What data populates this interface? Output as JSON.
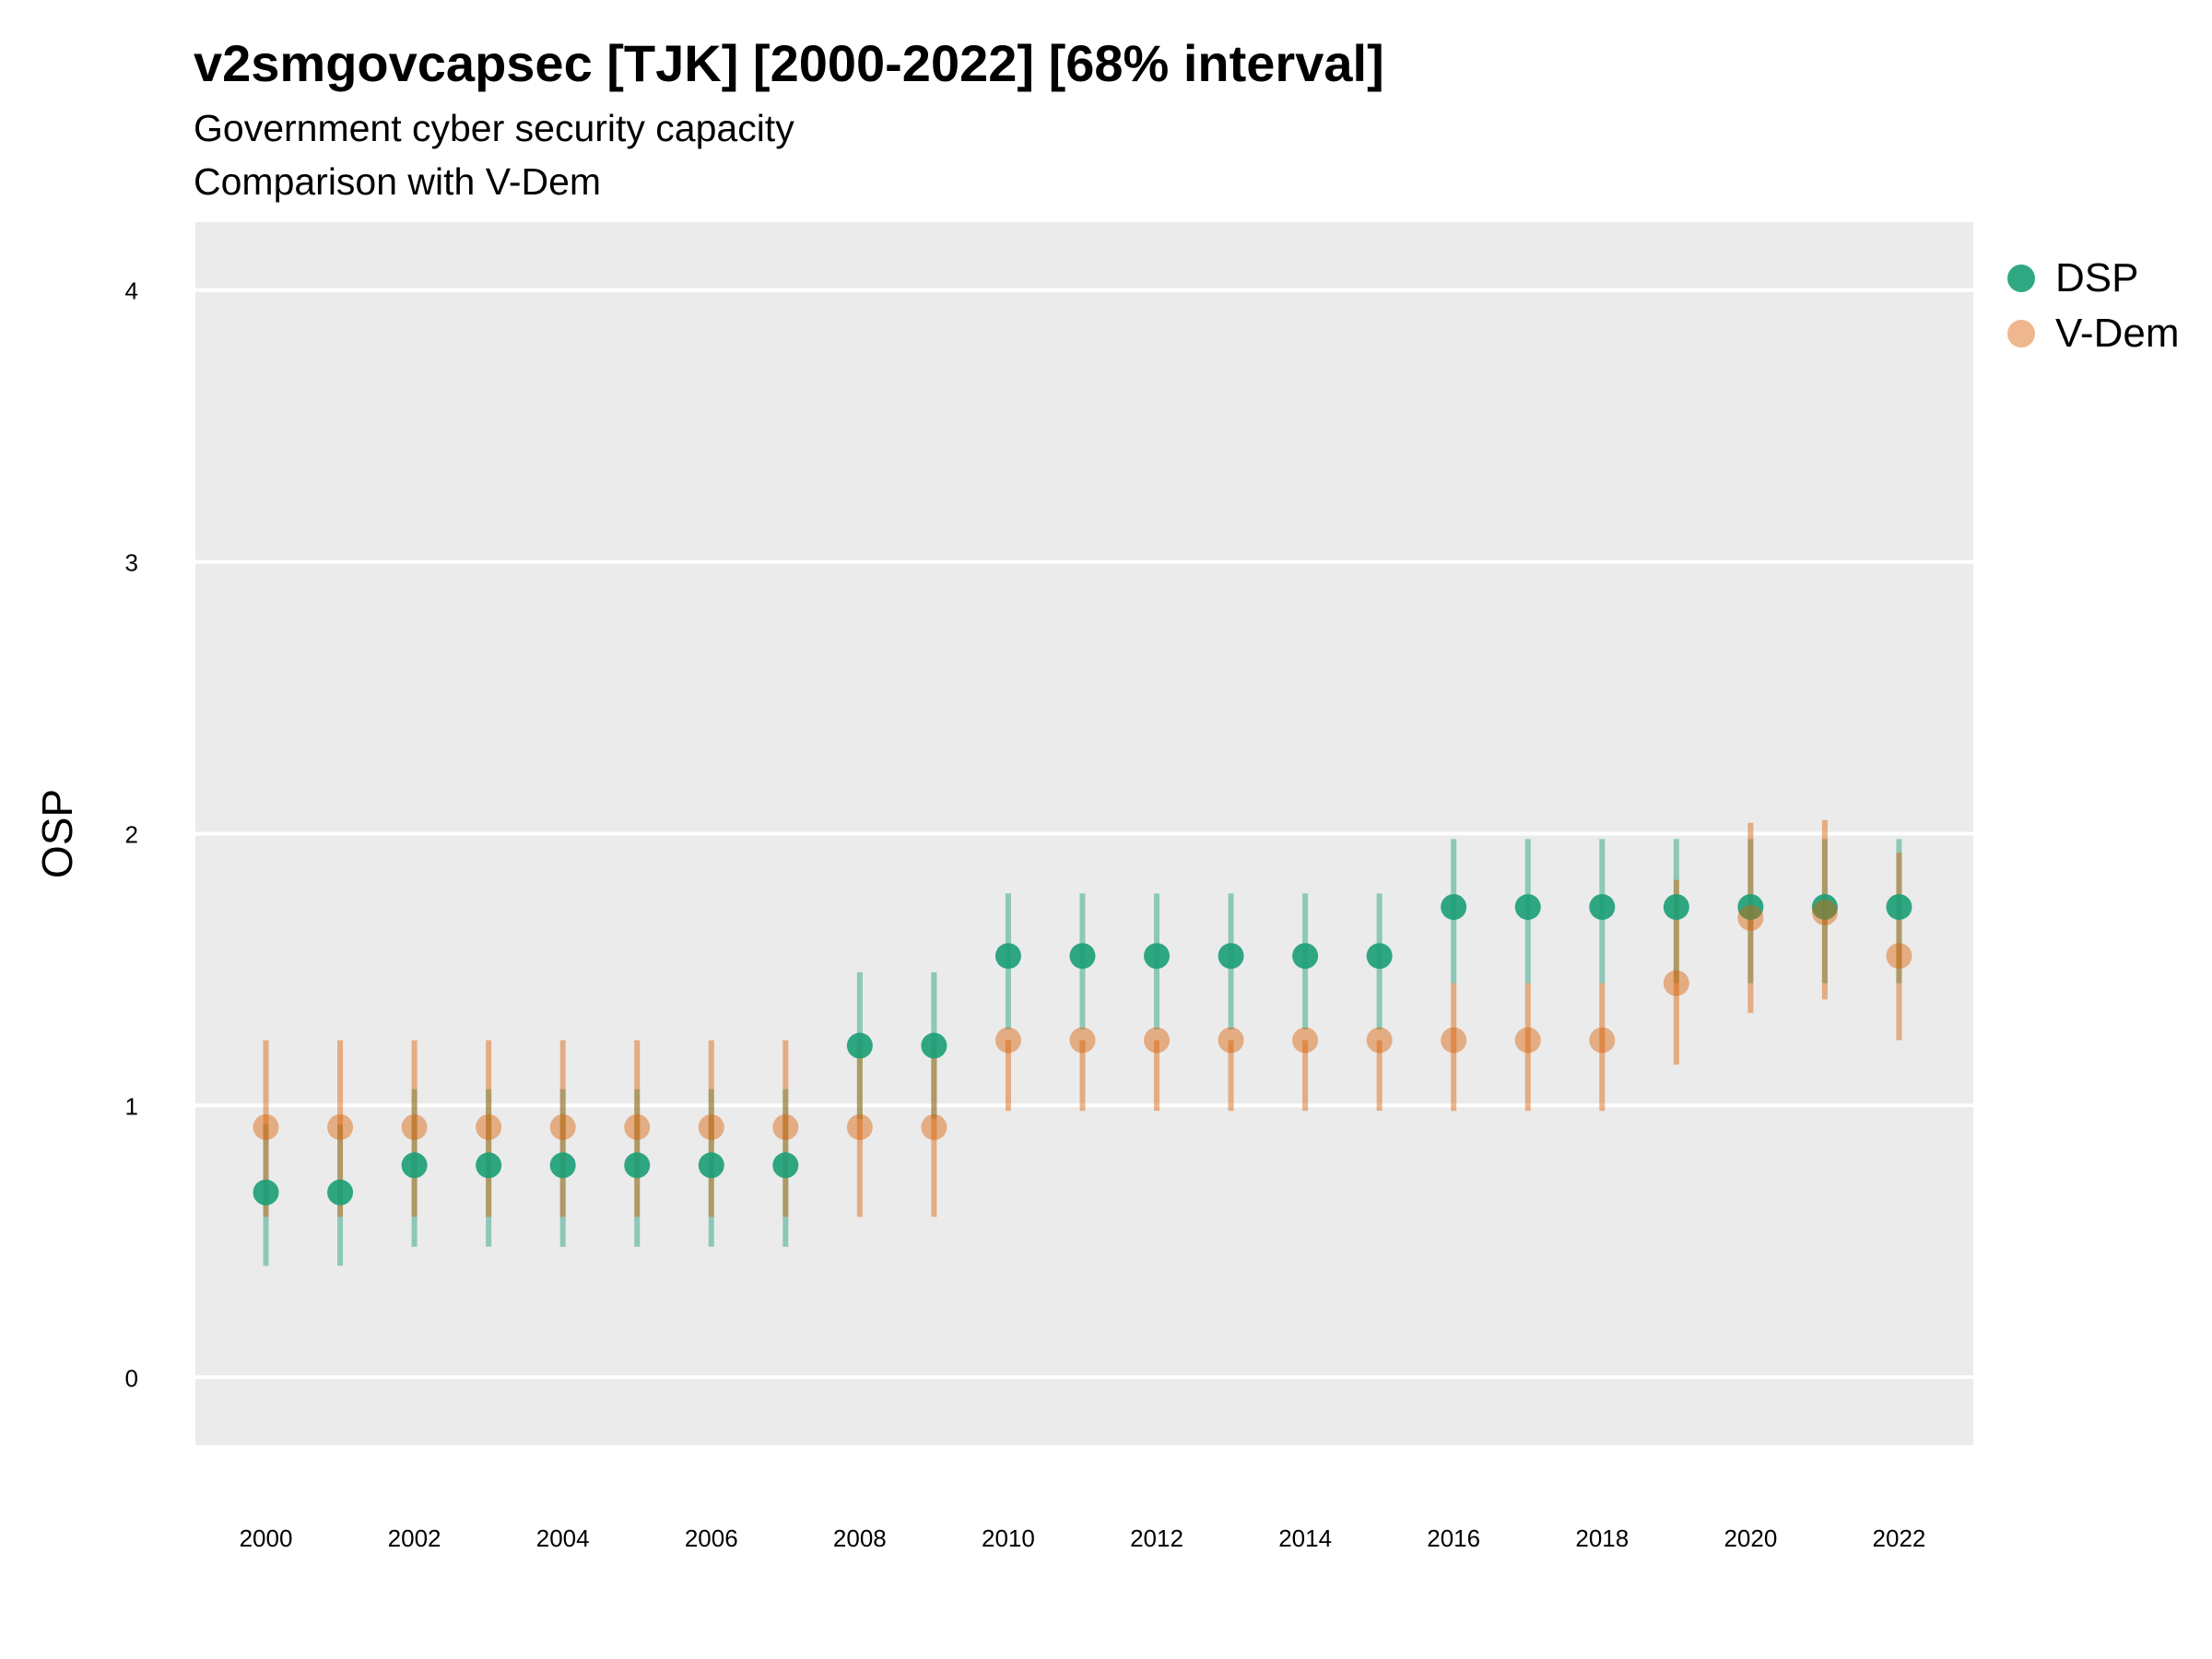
{
  "title": "v2smgovcapsec [TJK] [2000-2022] [68% interval]",
  "subtitles": [
    "Government cyber security capacity",
    "Comparison with V-Dem"
  ],
  "chart_data": {
    "type": "scatter",
    "ylabel": "OSP",
    "xlabel": "",
    "ylim": [
      -0.25,
      4.25
    ],
    "xlim": [
      1999.05,
      2023.0
    ],
    "yticks": [
      "0",
      "1",
      "2",
      "3",
      "4"
    ],
    "xticks": [
      "2000",
      "2002",
      "2004",
      "2006",
      "2008",
      "2010",
      "2012",
      "2014",
      "2016",
      "2018",
      "2020",
      "2022"
    ],
    "grid": true,
    "legend_position": "right",
    "x": [
      2000,
      2001,
      2002,
      2003,
      2004,
      2005,
      2006,
      2007,
      2008,
      2009,
      2010,
      2011,
      2012,
      2013,
      2014,
      2015,
      2016,
      2017,
      2018,
      2019,
      2020,
      2021,
      2022
    ],
    "series": [
      {
        "name": "DSP",
        "color": "#1b9e77",
        "values": [
          0.68,
          0.68,
          0.78,
          0.78,
          0.78,
          0.78,
          0.78,
          0.78,
          1.22,
          1.22,
          1.55,
          1.55,
          1.55,
          1.55,
          1.55,
          1.55,
          1.73,
          1.73,
          1.73,
          1.73,
          1.73,
          1.73,
          1.73
        ],
        "lower": [
          0.41,
          0.41,
          0.48,
          0.48,
          0.48,
          0.48,
          0.48,
          0.48,
          0.95,
          0.95,
          1.28,
          1.28,
          1.28,
          1.28,
          1.28,
          1.28,
          1.45,
          1.45,
          1.45,
          1.45,
          1.45,
          1.45,
          1.45
        ],
        "upper": [
          0.93,
          0.93,
          1.06,
          1.06,
          1.06,
          1.06,
          1.06,
          1.06,
          1.49,
          1.49,
          1.78,
          1.78,
          1.78,
          1.78,
          1.78,
          1.78,
          1.98,
          1.98,
          1.98,
          1.98,
          1.98,
          1.98,
          1.98
        ]
      },
      {
        "name": "V-Dem",
        "color": "#d95f02",
        "values": [
          0.92,
          0.92,
          0.92,
          0.92,
          0.92,
          0.92,
          0.92,
          0.92,
          0.92,
          0.92,
          1.24,
          1.24,
          1.24,
          1.24,
          1.24,
          1.24,
          1.24,
          1.24,
          1.24,
          1.45,
          1.69,
          1.71,
          1.55
        ],
        "lower": [
          0.59,
          0.59,
          0.59,
          0.59,
          0.59,
          0.59,
          0.59,
          0.59,
          0.59,
          0.59,
          0.98,
          0.98,
          0.98,
          0.98,
          0.98,
          0.98,
          0.98,
          0.98,
          0.98,
          1.15,
          1.34,
          1.39,
          1.24
        ],
        "upper": [
          1.24,
          1.24,
          1.24,
          1.24,
          1.24,
          1.24,
          1.24,
          1.24,
          1.24,
          1.24,
          1.24,
          1.24,
          1.24,
          1.24,
          1.24,
          1.24,
          1.45,
          1.45,
          1.45,
          1.83,
          2.04,
          2.05,
          1.93
        ]
      }
    ]
  }
}
